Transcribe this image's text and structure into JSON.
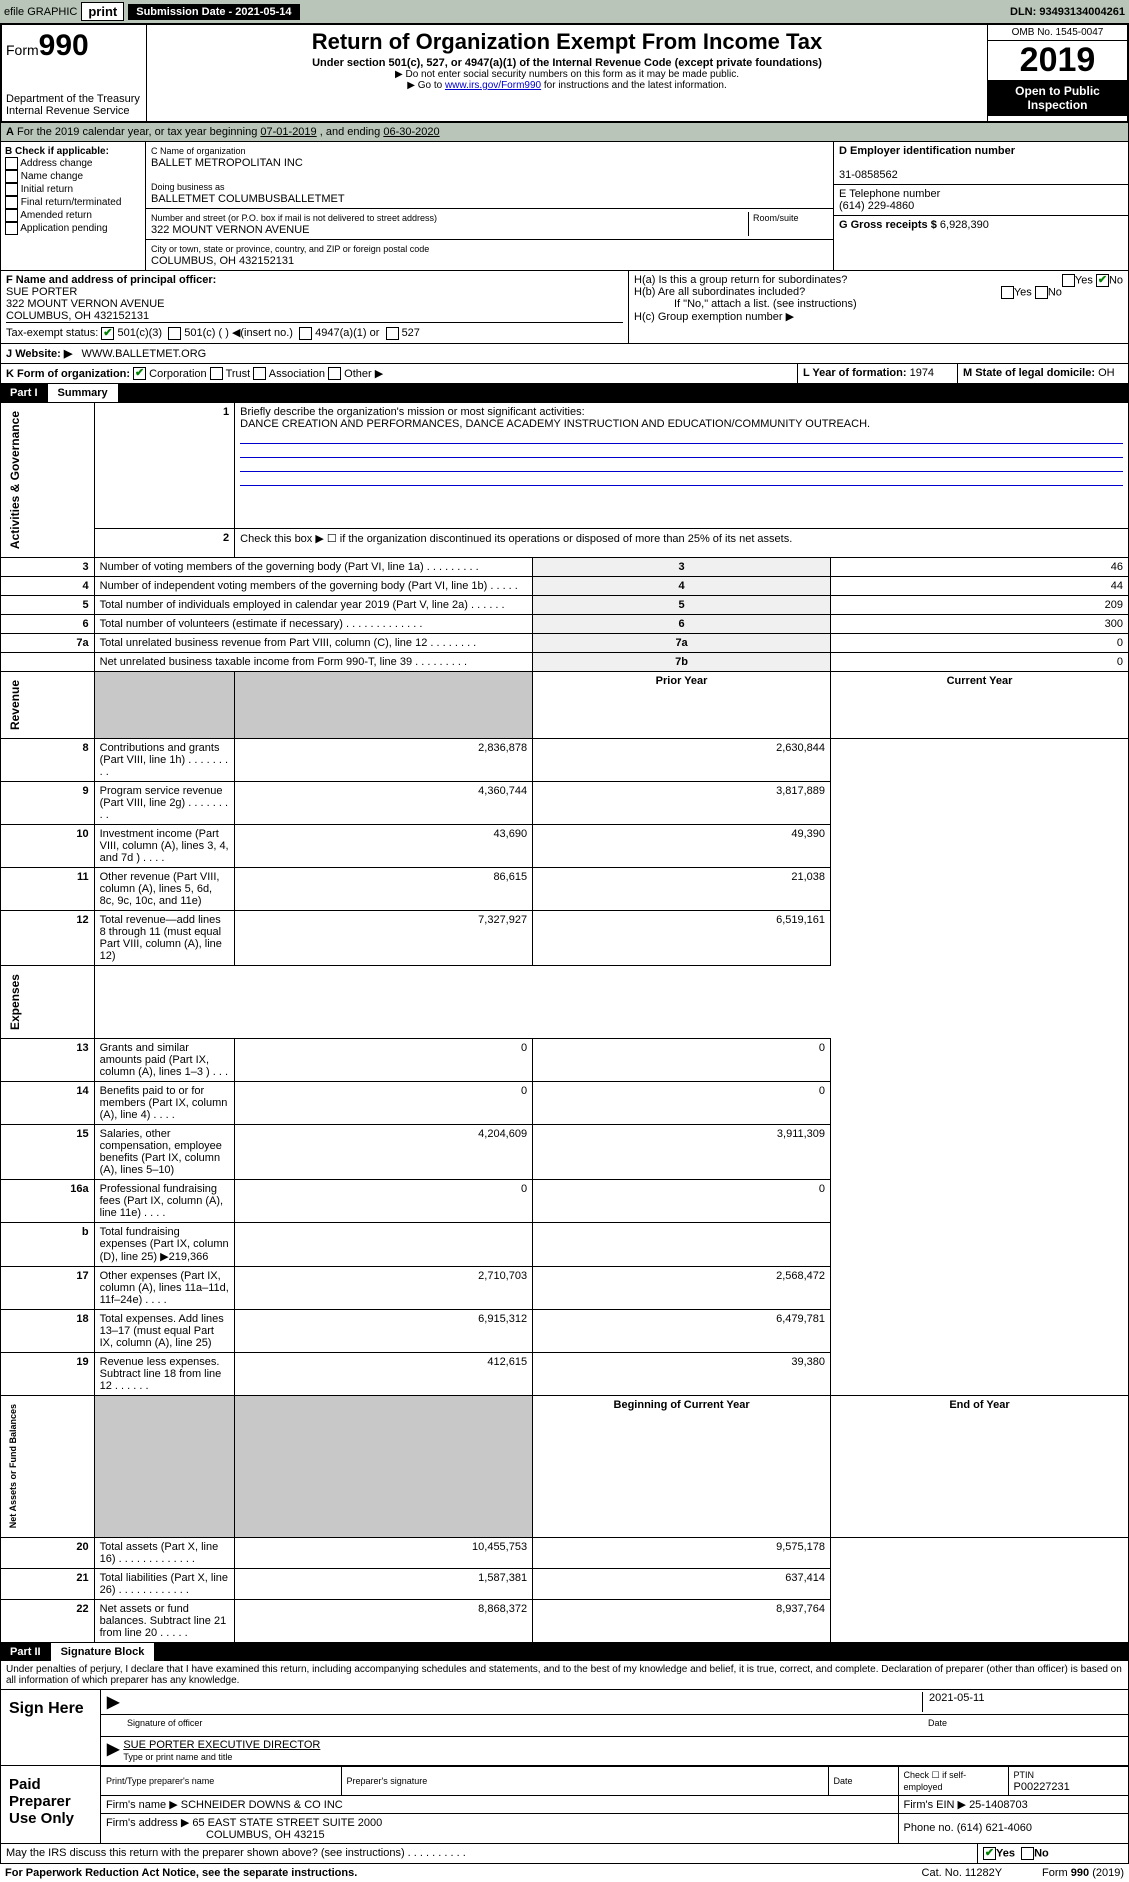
{
  "topbar": {
    "efile": "efile GRAPHIC",
    "print": "print",
    "subdate_label": "Submission Date - 2021-05-14",
    "dln": "DLN: 93493134004261"
  },
  "header": {
    "form": "Form",
    "form_num": "990",
    "dept": "Department of the Treasury\nInternal Revenue Service",
    "title": "Return of Organization Exempt From Income Tax",
    "subtitle": "Under section 501(c), 527, or 4947(a)(1) of the Internal Revenue Code (except private foundations)",
    "note1": "▶ Do not enter social security numbers on this form as it may be made public.",
    "note2_pre": "▶ Go to ",
    "note2_link": "www.irs.gov/Form990",
    "note2_post": " for instructions and the latest information.",
    "omb": "OMB No. 1545-0047",
    "year": "2019",
    "open": "Open to Public Inspection"
  },
  "line_a": {
    "text_pre": "For the 2019 calendar year, or tax year beginning ",
    "begin": "07-01-2019",
    "mid": " , and ending ",
    "end": "06-30-2020"
  },
  "box_b": {
    "title": "B Check if applicable:",
    "opts": [
      "Address change",
      "Name change",
      "Initial return",
      "Final return/terminated",
      "Amended return",
      "Application pending"
    ]
  },
  "box_c": {
    "label": "C Name of organization",
    "name": "BALLET METROPOLITAN INC",
    "dba_label": "Doing business as",
    "dba": "BALLETMET COLUMBUSBALLETMET",
    "addr_label": "Number and street (or P.O. box if mail is not delivered to street address)",
    "room_label": "Room/suite",
    "addr": "322 MOUNT VERNON AVENUE",
    "city_label": "City or town, state or province, country, and ZIP or foreign postal code",
    "city": "COLUMBUS, OH  432152131"
  },
  "box_d": {
    "label": "D Employer identification number",
    "value": "31-0858562"
  },
  "box_e": {
    "label": "E Telephone number",
    "value": "(614) 229-4860"
  },
  "box_g": {
    "label": "G Gross receipts $",
    "value": "6,928,390"
  },
  "box_f": {
    "label": "F  Name and address of principal officer:",
    "name": "SUE PORTER",
    "addr1": "322 MOUNT VERNON AVENUE",
    "addr2": "COLUMBUS, OH  432152131"
  },
  "box_h": {
    "a": "H(a)  Is this a group return for subordinates?",
    "b": "H(b)  Are all subordinates included?",
    "bnote": "If \"No,\" attach a list. (see instructions)",
    "c": "H(c)  Group exemption number ▶"
  },
  "tax_status": {
    "label": "Tax-exempt status:",
    "opts": [
      "501(c)(3)",
      "501(c) (  ) ◀(insert no.)",
      "4947(a)(1) or",
      "527"
    ]
  },
  "box_j": {
    "label": "J",
    "text": "Website: ▶",
    "value": "WWW.BALLETMET.ORG"
  },
  "box_k": {
    "label": "K Form of organization:",
    "opts": [
      "Corporation",
      "Trust",
      "Association",
      "Other ▶"
    ]
  },
  "box_l": {
    "label": "L Year of formation:",
    "value": "1974"
  },
  "box_m": {
    "label": "M State of legal domicile:",
    "value": "OH"
  },
  "part1": {
    "num": "Part I",
    "title": "Summary"
  },
  "p1": {
    "l1": "Briefly describe the organization's mission or most significant activities:",
    "l1v": "DANCE CREATION AND PERFORMANCES, DANCE ACADEMY INSTRUCTION AND EDUCATION/COMMUNITY OUTREACH.",
    "l2": "Check this box ▶  ☐  if the organization discontinued its operations or disposed of more than 25% of its net assets.",
    "rows_top": [
      {
        "n": "3",
        "t": "Number of voting members of the governing body (Part VI, line 1a)   .    .    .    .    .    .    .    .    .",
        "k": "3",
        "v": "46"
      },
      {
        "n": "4",
        "t": "Number of independent voting members of the governing body (Part VI, line 1b)   .    .    .    .    .",
        "k": "4",
        "v": "44"
      },
      {
        "n": "5",
        "t": "Total number of individuals employed in calendar year 2019 (Part V, line 2a)   .    .    .    .    .    .",
        "k": "5",
        "v": "209"
      },
      {
        "n": "6",
        "t": "Total number of volunteers (estimate if necessary)   .    .    .    .    .    .    .    .    .    .    .    .    .",
        "k": "6",
        "v": "300"
      },
      {
        "n": "7a",
        "t": "Total unrelated business revenue from Part VIII, column (C), line 12   .    .    .    .    .    .    .    .",
        "k": "7a",
        "v": "0"
      },
      {
        "n": "",
        "t": "Net unrelated business taxable income from Form 990-T, line 39   .    .    .    .    .    .    .    .    .",
        "k": "7b",
        "v": "0"
      }
    ],
    "hdr_prior": "Prior Year",
    "hdr_current": "Current Year",
    "revenue": [
      {
        "n": "8",
        "t": "Contributions and grants (Part VIII, line 1h)   .    .    .    .    .    .    .    .    .",
        "p": "2,836,878",
        "c": "2,630,844"
      },
      {
        "n": "9",
        "t": "Program service revenue (Part VIII, line 2g)   .    .    .    .    .    .    .    .    .",
        "p": "4,360,744",
        "c": "3,817,889"
      },
      {
        "n": "10",
        "t": "Investment income (Part VIII, column (A), lines 3, 4, and 7d )   .    .    .    .",
        "p": "43,690",
        "c": "49,390"
      },
      {
        "n": "11",
        "t": "Other revenue (Part VIII, column (A), lines 5, 6d, 8c, 9c, 10c, and 11e)",
        "p": "86,615",
        "c": "21,038"
      },
      {
        "n": "12",
        "t": "Total revenue—add lines 8 through 11 (must equal Part VIII, column (A), line 12)",
        "p": "7,327,927",
        "c": "6,519,161"
      }
    ],
    "expenses": [
      {
        "n": "13",
        "t": "Grants and similar amounts paid (Part IX, column (A), lines 1–3 )   .    .    .",
        "p": "0",
        "c": "0"
      },
      {
        "n": "14",
        "t": "Benefits paid to or for members (Part IX, column (A), line 4)   .    .    .    .",
        "p": "0",
        "c": "0"
      },
      {
        "n": "15",
        "t": "Salaries, other compensation, employee benefits (Part IX, column (A), lines 5–10)",
        "p": "4,204,609",
        "c": "3,911,309"
      },
      {
        "n": "16a",
        "t": "Professional fundraising fees (Part IX, column (A), line 11e)   .    .    .    .",
        "p": "0",
        "c": "0"
      },
      {
        "n": "b",
        "t": "Total fundraising expenses (Part IX, column (D), line 25) ▶219,366",
        "p": "",
        "c": "",
        "grey": true
      },
      {
        "n": "17",
        "t": "Other expenses (Part IX, column (A), lines 11a–11d, 11f–24e)   .    .    .    .",
        "p": "2,710,703",
        "c": "2,568,472"
      },
      {
        "n": "18",
        "t": "Total expenses. Add lines 13–17 (must equal Part IX, column (A), line 25)",
        "p": "6,915,312",
        "c": "6,479,781"
      },
      {
        "n": "19",
        "t": "Revenue less expenses. Subtract line 18 from line 12   .    .    .    .    .    .",
        "p": "412,615",
        "c": "39,380"
      }
    ],
    "hdr_beg": "Beginning of Current Year",
    "hdr_end": "End of Year",
    "netassets": [
      {
        "n": "20",
        "t": "Total assets (Part X, line 16)   .    .    .    .    .    .    .    .    .    .    .    .    .",
        "p": "10,455,753",
        "c": "9,575,178"
      },
      {
        "n": "21",
        "t": "Total liabilities (Part X, line 26)   .    .    .    .    .    .    .    .    .    .    .    .",
        "p": "1,587,381",
        "c": "637,414"
      },
      {
        "n": "22",
        "t": "Net assets or fund balances. Subtract line 21 from line 20   .    .    .    .    .",
        "p": "8,868,372",
        "c": "8,937,764"
      }
    ]
  },
  "part2": {
    "num": "Part II",
    "title": "Signature Block"
  },
  "sig_decl": "Under penalties of perjury, I declare that I have examined this return, including accompanying schedules and statements, and to the best of my knowledge and belief, it is true, correct, and complete. Declaration of preparer (other than officer) is based on all information of which preparer has any knowledge.",
  "sign_here": "Sign Here",
  "sig": {
    "date": "2021-05-11",
    "sig_label": "Signature of officer",
    "date_label": "Date",
    "name": "SUE PORTER  EXECUTIVE DIRECTOR",
    "name_label": "Type or print name and title"
  },
  "paid_label": "Paid Preparer Use Only",
  "paid": {
    "h1": "Print/Type preparer's name",
    "h2": "Preparer's signature",
    "h3": "Date",
    "h4": "Check ☐ if self-employed",
    "h5": "PTIN",
    "ptin": "P00227231",
    "firm_label": "Firm's name   ▶",
    "firm": "SCHNEIDER DOWNS & CO INC",
    "ein_label": "Firm's EIN ▶",
    "ein": "25-1408703",
    "addr_label": "Firm's address ▶",
    "addr1": "65 EAST STATE STREET SUITE 2000",
    "addr2": "COLUMBUS, OH  43215",
    "phone_label": "Phone no.",
    "phone": "(614) 621-4060"
  },
  "discuss": "May the IRS discuss this return with the preparer shown above? (see instructions)   .    .    .    .    .    .    .    .    .    .",
  "footer": {
    "left": "For Paperwork Reduction Act Notice, see the separate instructions.",
    "mid": "Cat. No. 11282Y",
    "right": "Form 990 (2019)"
  }
}
